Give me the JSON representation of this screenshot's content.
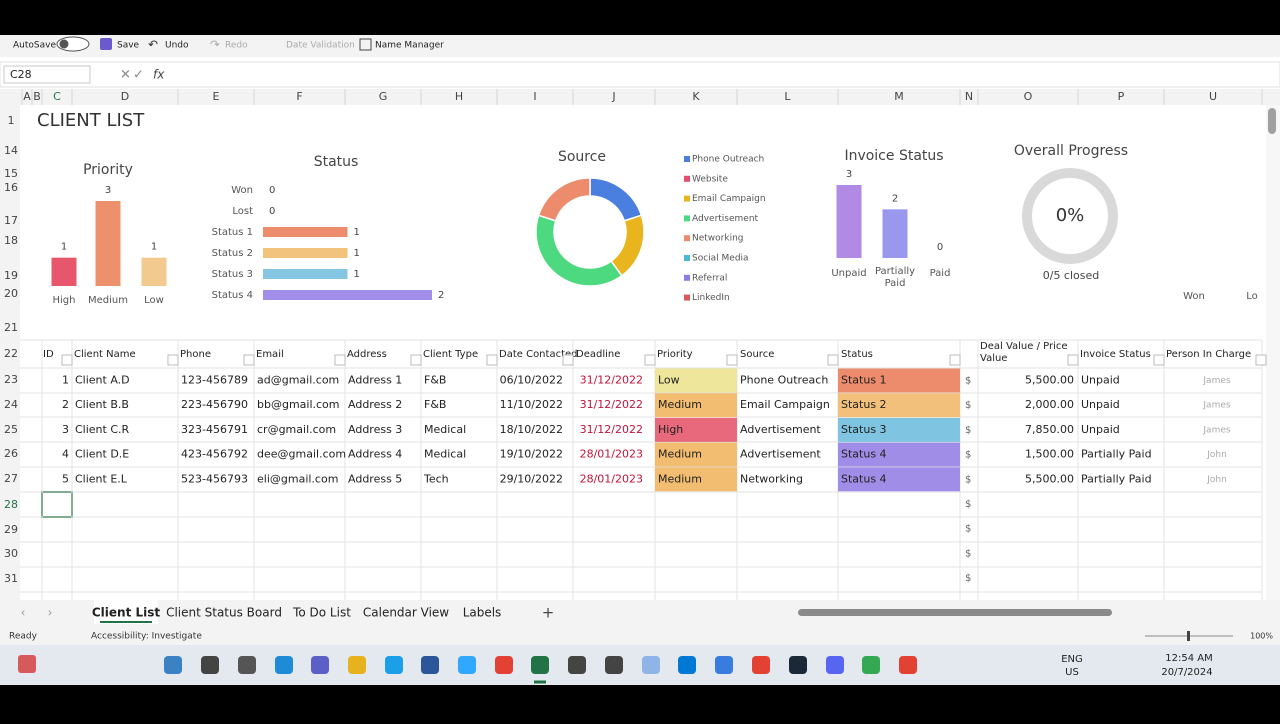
{
  "toolbar": {
    "autosave": "AutoSave",
    "save": "Save",
    "undo": "Undo",
    "redo": "Redo",
    "data_validation": "Date Validation",
    "name_manager": "Name Manager"
  },
  "formula_bar": {
    "name_box": "C28",
    "fx": "fx"
  },
  "column_headers": [
    "A",
    "B",
    "C",
    "D",
    "E",
    "F",
    "G",
    "H",
    "I",
    "J",
    "K",
    "L",
    "M",
    "N",
    "O",
    "P",
    "U"
  ],
  "row_headers": [
    "1",
    "14",
    "15",
    "16",
    "17",
    "18",
    "19",
    "20",
    "21",
    "22",
    "23",
    "24",
    "25",
    "26",
    "27",
    "28",
    "29",
    "30",
    "31"
  ],
  "sheet_title": "CLIENT LIST",
  "chart_data": [
    {
      "type": "bar",
      "title": "Priority",
      "categories": [
        "High",
        "Medium",
        "Low"
      ],
      "values": [
        1,
        3,
        1
      ],
      "colors": [
        "#e8566c",
        "#ec916c",
        "#f2c98e"
      ]
    },
    {
      "type": "bar",
      "orientation": "horizontal",
      "title": "Status",
      "categories": [
        "Won",
        "Lost",
        "Status 1",
        "Status 2",
        "Status 3",
        "Status 4"
      ],
      "values": [
        0,
        0,
        1,
        1,
        1,
        2
      ],
      "colors": [
        "#a6a6a6",
        "#a6a6a6",
        "#ec8c6c",
        "#f2c37d",
        "#85c7e3",
        "#a08ee8"
      ]
    },
    {
      "type": "pie",
      "donut": true,
      "title": "Source",
      "categories": [
        "Phone Outreach",
        "Website",
        "Email Campaign",
        "Advertisement",
        "Networking",
        "Social Media",
        "Referral",
        "LinkedIn"
      ],
      "values": [
        1,
        0,
        1,
        2,
        1,
        0,
        0,
        0
      ],
      "colors": [
        "#4a7fe0",
        "#e0506a",
        "#e8b51e",
        "#4cd97f",
        "#ec8c6c",
        "#4ab8d8",
        "#8c7ee0",
        "#d85a5a"
      ]
    },
    {
      "type": "bar",
      "title": "Invoice Status",
      "categories": [
        "Unpaid",
        "Partially Paid",
        "Paid"
      ],
      "values": [
        3,
        2,
        0
      ],
      "colors": [
        "#b18ae6",
        "#9a98ec",
        "#a6a6a6"
      ]
    },
    {
      "type": "gauge",
      "title": "Overall Progress",
      "values": [
        0
      ],
      "value_labels": [
        "0%"
      ],
      "annotation": "0/5 closed",
      "color": "#d9d9d9"
    },
    {
      "type": "bar",
      "categories": [
        "Won",
        "Lo"
      ],
      "values": [
        null,
        null
      ],
      "colors": [
        "#a6a6a6",
        "#a6a6a6"
      ]
    }
  ],
  "table": {
    "headers": [
      "ID",
      "Client Name",
      "Phone",
      "Email",
      "Address",
      "Client Type",
      "Date Contacted",
      "Deadline",
      "Priority",
      "Source",
      "Status",
      "Deal Value / Price Value",
      "Invoice Status",
      "Person In Charge"
    ],
    "rows": [
      [
        "1",
        "Client A.D",
        "123-456789",
        "ad@gmail.com",
        "Address 1",
        "F&B",
        "06/10/2022",
        "31/12/2022",
        "Low",
        "Phone Outreach",
        "Status 1",
        "$",
        "5,500.00",
        "Unpaid",
        "James"
      ],
      [
        "2",
        "Client B.B",
        "223-456790",
        "bb@gmail.com",
        "Address 2",
        "F&B",
        "11/10/2022",
        "31/12/2022",
        "Medium",
        "Email Campaign",
        "Status 2",
        "$",
        "2,000.00",
        "Unpaid",
        "James"
      ],
      [
        "3",
        "Client C.R",
        "323-456791",
        "cr@gmail.com",
        "Address 3",
        "Medical",
        "18/10/2022",
        "31/12/2022",
        "High",
        "Advertisement",
        "Status 3",
        "$",
        "7,850.00",
        "Unpaid",
        "James"
      ],
      [
        "4",
        "Client D.E",
        "423-456792",
        "dee@gmail.com",
        "Address 4",
        "Medical",
        "19/10/2022",
        "28/01/2023",
        "Medium",
        "Advertisement",
        "Status 4",
        "$",
        "1,500.00",
        "Partially Paid",
        "John"
      ],
      [
        "5",
        "Client E.L",
        "523-456793",
        "eli@gmail.com",
        "Address 5",
        "Tech",
        "29/10/2022",
        "28/01/2023",
        "Medium",
        "Networking",
        "Status 4",
        "$",
        "5,500.00",
        "Partially Paid",
        "John"
      ]
    ],
    "blank_row_currency": [
      "$",
      "$",
      "$",
      "$"
    ],
    "priority_colors": {
      "Low": "#eee69b",
      "Medium": "#f2bd70",
      "High": "#e9697c"
    },
    "status_colors": {
      "Status 1": "#ec8c6c",
      "Status 2": "#f2c07a",
      "Status 3": "#7fc4e0",
      "Status 4": "#a08de8"
    },
    "deadline_color": "#c0143c"
  },
  "sheet_tabs": [
    "Client List",
    "Client Status Board",
    "To Do List",
    "Calendar View",
    "Labels"
  ],
  "add_sheet": "+",
  "status_bar": {
    "ready": "Ready",
    "accessibility": "Accessibility: Investigate",
    "zoom": "100%"
  },
  "taskbar": {
    "language": "ENG",
    "region": "US",
    "time": "12:54 AM",
    "date": "20/7/2024"
  }
}
